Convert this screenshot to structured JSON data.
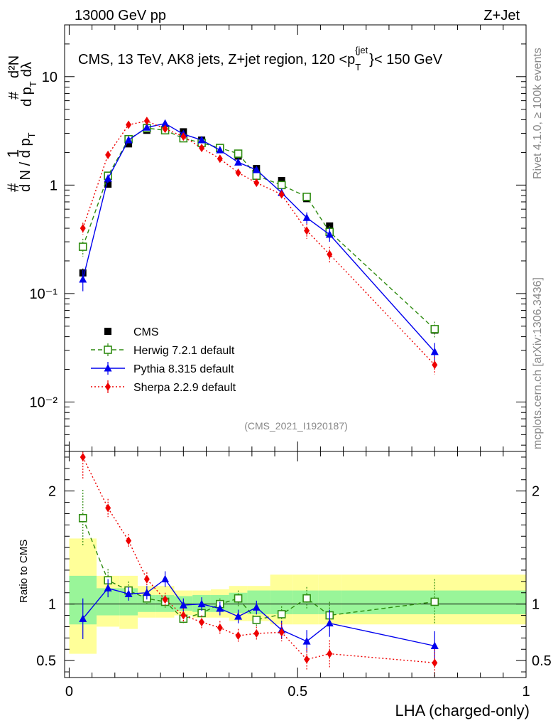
{
  "header": {
    "energy_label": "13000 GeV pp",
    "process_label": "Z+Jet"
  },
  "side_labels": {
    "rivet": "Rivet 4.1.0, ≥ 100k events",
    "mcplots": "mcplots.cern.ch [arXiv:1306.3436]"
  },
  "colors": {
    "cms": "#000000",
    "herwig": "#2e8b10",
    "pythia": "#0000ee",
    "sherpa": "#ee0000",
    "band_yellow": "#ffff99",
    "band_green": "#99f599"
  },
  "chart_data": [
    {
      "type": "scatter",
      "panel": "main",
      "title": "CMS, 13 TeV, AK8 jets, Z+jet region, 120 <p_T^{jet}< 150 GeV",
      "title_parts": {
        "main": "CMS, 13 TeV, AK8 jets, Z+jet region, 120 <p",
        "sub": "T",
        "sup": "{jet",
        "tail": "}< 150 GeV"
      },
      "ylabel": "1/(dN/dp_T) d²N/dp_T dλ",
      "ylabel_parts": {
        "hash1": "#",
        "one": "1",
        "hash2": "#",
        "dN": "d N / d p",
        "T1": "T",
        "hash3": "#",
        "d2N": "d²N",
        "dp": "d p",
        "T2": "T",
        "dl": "dλ"
      },
      "yscale": "log",
      "ylim": [
        0.0035,
        30
      ],
      "xlim": [
        -0.01,
        1.0
      ],
      "yticks": [
        {
          "v": 10,
          "label": "10"
        },
        {
          "v": 1,
          "label": "1"
        },
        {
          "v": 0.1,
          "label": "10⁻¹"
        },
        {
          "v": 0.01,
          "label": "10⁻²"
        }
      ],
      "watermark": "(CMS_2021_I1920187)",
      "x": [
        0.03,
        0.085,
        0.13,
        0.17,
        0.21,
        0.25,
        0.29,
        0.33,
        0.37,
        0.41,
        0.465,
        0.52,
        0.57,
        0.8
      ],
      "series": [
        {
          "name": "CMS",
          "style": "data",
          "values": [
            0.155,
            1.02,
            2.4,
            3.2,
            3.25,
            3.1,
            2.6,
            2.2,
            1.85,
            1.42,
            1.1,
            0.75,
            0.42,
            0.046
          ],
          "errors": [
            0.015,
            0.05,
            0.08,
            0.1,
            0.1,
            0.1,
            0.08,
            0.07,
            0.06,
            0.05,
            0.04,
            0.03,
            0.02,
            0.004
          ]
        },
        {
          "name": "Herwig 7.2.1 default",
          "style": "herwig",
          "values": [
            0.27,
            1.22,
            2.65,
            3.35,
            3.2,
            2.7,
            2.45,
            2.2,
            1.95,
            1.22,
            1.0,
            0.78,
            0.37,
            0.047
          ],
          "errors": [
            0.05,
            0.1,
            0.15,
            0.15,
            0.15,
            0.1,
            0.1,
            0.1,
            0.1,
            0.08,
            0.07,
            0.06,
            0.05,
            0.008
          ]
        },
        {
          "name": "Pythia 8.315 default",
          "style": "pythia",
          "values": [
            0.135,
            1.15,
            2.6,
            3.4,
            3.7,
            2.95,
            2.6,
            2.1,
            1.62,
            1.38,
            0.85,
            0.5,
            0.35,
            0.029
          ],
          "errors": [
            0.03,
            0.1,
            0.15,
            0.15,
            0.2,
            0.15,
            0.15,
            0.12,
            0.1,
            0.08,
            0.08,
            0.06,
            0.05,
            0.006
          ]
        },
        {
          "name": "Sherpa 2.2.9 default",
          "style": "sherpa",
          "values": [
            0.4,
            1.9,
            3.6,
            3.9,
            3.3,
            2.8,
            2.2,
            1.75,
            1.3,
            1.05,
            0.82,
            0.38,
            0.23,
            0.022
          ],
          "errors": [
            0.05,
            0.1,
            0.15,
            0.15,
            0.15,
            0.12,
            0.1,
            0.1,
            0.08,
            0.07,
            0.07,
            0.06,
            0.04,
            0.004
          ]
        }
      ],
      "legend": {
        "position": "bottom-left",
        "entries": [
          "CMS",
          "Herwig 7.2.1 default",
          "Pythia 8.315 default",
          "Sherpa 2.2.9 default"
        ]
      }
    },
    {
      "type": "scatter",
      "panel": "ratio",
      "ylabel": "Ratio to CMS",
      "xlabel": "LHA (charged-only)",
      "ylim": [
        0.35,
        2.35
      ],
      "xlim": [
        -0.01,
        1.0
      ],
      "yticks": [
        {
          "v": 2,
          "label": "2"
        },
        {
          "v": 1,
          "label": "1"
        },
        {
          "v": 0.5,
          "label": "0.5"
        }
      ],
      "xticks": [
        {
          "v": 0,
          "label": "0"
        },
        {
          "v": 0.5,
          "label": "0.5"
        },
        {
          "v": 1,
          "label": "1"
        }
      ],
      "bins": [
        [
          0.0,
          0.06
        ],
        [
          0.06,
          0.11
        ],
        [
          0.11,
          0.15
        ],
        [
          0.15,
          0.19
        ],
        [
          0.19,
          0.23
        ],
        [
          0.23,
          0.27
        ],
        [
          0.27,
          0.31
        ],
        [
          0.31,
          0.35
        ],
        [
          0.35,
          0.39
        ],
        [
          0.39,
          0.44
        ],
        [
          0.44,
          0.49
        ],
        [
          0.49,
          0.545
        ],
        [
          0.545,
          0.595
        ],
        [
          0.595,
          1.0
        ]
      ],
      "band_yellow": [
        [
          0.56,
          1.58
        ],
        [
          0.8,
          1.25
        ],
        [
          0.78,
          1.25
        ],
        [
          0.88,
          1.16
        ],
        [
          0.88,
          1.16
        ],
        [
          0.9,
          1.12
        ],
        [
          0.88,
          1.12
        ],
        [
          0.88,
          1.13
        ],
        [
          0.85,
          1.16
        ],
        [
          0.85,
          1.16
        ],
        [
          0.82,
          1.26
        ],
        [
          0.82,
          1.26
        ],
        [
          0.82,
          1.26
        ],
        [
          0.82,
          1.26
        ]
      ],
      "band_green": [
        [
          0.82,
          1.25
        ],
        [
          0.9,
          1.14
        ],
        [
          0.9,
          1.14
        ],
        [
          0.93,
          1.08
        ],
        [
          0.93,
          1.08
        ],
        [
          0.94,
          1.07
        ],
        [
          0.93,
          1.08
        ],
        [
          0.93,
          1.08
        ],
        [
          0.92,
          1.1
        ],
        [
          0.91,
          1.12
        ],
        [
          0.91,
          1.12
        ],
        [
          0.91,
          1.12
        ],
        [
          0.91,
          1.12
        ],
        [
          0.91,
          1.12
        ]
      ],
      "series": [
        {
          "name": "Herwig 7.2.1 default",
          "style": "herwig",
          "values": [
            1.76,
            1.21,
            1.12,
            1.05,
            1.02,
            0.87,
            0.92,
            1.0,
            1.05,
            0.86,
            0.91,
            1.05,
            0.9,
            1.02
          ],
          "errors": [
            0.25,
            0.1,
            0.08,
            0.06,
            0.06,
            0.05,
            0.05,
            0.05,
            0.07,
            0.06,
            0.07,
            0.1,
            0.12,
            0.2
          ]
        },
        {
          "name": "Pythia 8.315 default",
          "style": "pythia",
          "values": [
            0.87,
            1.14,
            1.09,
            1.1,
            1.22,
            0.99,
            1.0,
            0.96,
            0.89,
            0.97,
            0.77,
            0.67,
            0.83,
            0.63
          ],
          "errors": [
            0.18,
            0.08,
            0.06,
            0.06,
            0.07,
            0.06,
            0.06,
            0.06,
            0.06,
            0.06,
            0.08,
            0.1,
            0.12,
            0.13
          ]
        },
        {
          "name": "Sherpa 2.2.9 default",
          "style": "sherpa",
          "values": [
            2.3,
            1.85,
            1.56,
            1.22,
            1.04,
            0.9,
            0.84,
            0.79,
            0.72,
            0.74,
            0.75,
            0.51,
            0.56,
            0.48
          ],
          "errors": [
            0.2,
            0.08,
            0.06,
            0.06,
            0.06,
            0.06,
            0.06,
            0.06,
            0.06,
            0.06,
            0.08,
            0.1,
            0.12,
            0.12
          ]
        }
      ]
    }
  ]
}
